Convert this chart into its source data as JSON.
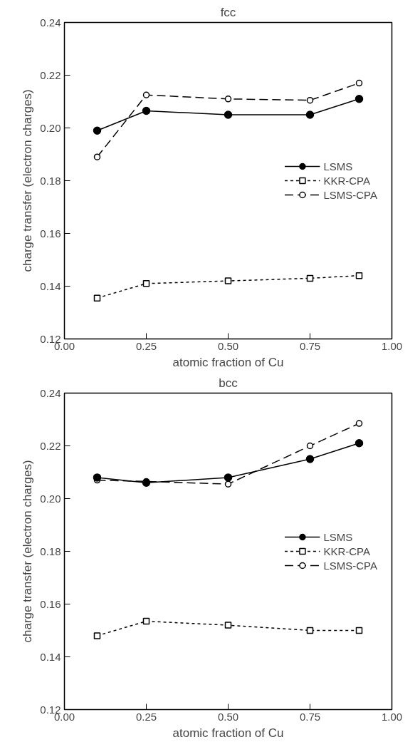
{
  "chart_data": [
    {
      "type": "line",
      "title": "fcc",
      "xlabel": "atomic fraction of Cu",
      "ylabel": "charge transfer (electron charges)",
      "x": [
        0.1,
        0.25,
        0.5,
        0.75,
        0.9
      ],
      "series": [
        {
          "name": "LSMS",
          "color": "#000000",
          "marker": "circle",
          "line_style": "solid",
          "values": [
            0.199,
            0.2065,
            0.205,
            0.205,
            0.211
          ]
        },
        {
          "name": "KKR-CPA",
          "color": "#000000",
          "marker": "square",
          "line_style": "dotted",
          "values": [
            0.1355,
            0.141,
            0.142,
            0.143,
            0.144
          ]
        },
        {
          "name": "LSMS-CPA",
          "color": "#000000",
          "marker": "circle",
          "line_style": "dashed",
          "values": [
            0.189,
            0.2125,
            0.211,
            0.2105,
            0.217
          ]
        }
      ],
      "xlim": [
        0,
        1
      ],
      "xticks": [
        {
          "value": 0,
          "label": "0.00"
        },
        {
          "value": 0.25,
          "label": "0.25"
        },
        {
          "value": 0.5,
          "label": "0.50"
        },
        {
          "value": 0.75,
          "label": "0.75"
        },
        {
          "value": 1,
          "label": "1.00"
        }
      ],
      "ylim": [
        0.12,
        0.24
      ],
      "yticks": [
        {
          "value": 0.12,
          "label": "0.12"
        },
        {
          "value": 0.14,
          "label": "0.14"
        },
        {
          "value": 0.16,
          "label": "0.16"
        },
        {
          "value": 0.18,
          "label": "0.18"
        },
        {
          "value": 0.2,
          "label": "0.20"
        },
        {
          "value": 0.22,
          "label": "0.22"
        },
        {
          "value": 0.24,
          "label": "0.24"
        }
      ],
      "grid": false,
      "legend": "right"
    },
    {
      "type": "line",
      "title": "bcc",
      "xlabel": "atomic fraction of Cu",
      "ylabel": "charge transfer (electron charges)",
      "x": [
        0.1,
        0.25,
        0.5,
        0.75,
        0.9
      ],
      "series": [
        {
          "name": "LSMS",
          "color": "#000000",
          "marker": "circle",
          "line_style": "solid",
          "values": [
            0.208,
            0.206,
            0.208,
            0.215,
            0.221
          ]
        },
        {
          "name": "KKR-CPA",
          "color": "#000000",
          "marker": "square",
          "line_style": "dotted",
          "values": [
            0.148,
            0.1535,
            0.152,
            0.15,
            0.15
          ]
        },
        {
          "name": "LSMS-CPA",
          "color": "#000000",
          "marker": "circle",
          "line_style": "dashed",
          "values": [
            0.207,
            0.2065,
            0.2055,
            0.22,
            0.2285
          ]
        }
      ],
      "xlim": [
        0,
        1
      ],
      "xticks": [
        {
          "value": 0,
          "label": "0.00"
        },
        {
          "value": 0.25,
          "label": "0.25"
        },
        {
          "value": 0.5,
          "label": "0.50"
        },
        {
          "value": 0.75,
          "label": "0.75"
        },
        {
          "value": 1,
          "label": "1.00"
        }
      ],
      "ylim": [
        0.12,
        0.24
      ],
      "yticks": [
        {
          "value": 0.12,
          "label": "0.12"
        },
        {
          "value": 0.14,
          "label": "0.14"
        },
        {
          "value": 0.16,
          "label": "0.16"
        },
        {
          "value": 0.18,
          "label": "0.18"
        },
        {
          "value": 0.2,
          "label": "0.20"
        },
        {
          "value": 0.22,
          "label": "0.22"
        },
        {
          "value": 0.24,
          "label": "0.24"
        }
      ],
      "grid": false,
      "legend": "right"
    }
  ]
}
